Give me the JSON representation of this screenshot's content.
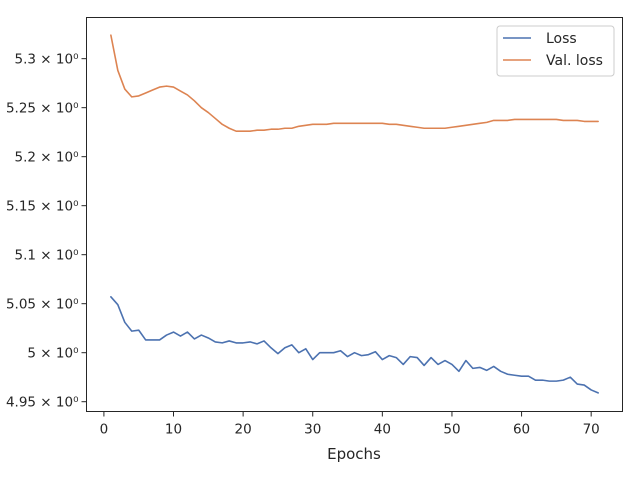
{
  "chart_data": {
    "type": "line",
    "title": "",
    "xlabel": "Epochs",
    "ylabel": "",
    "xlim": [
      -2.5,
      74.5
    ],
    "ylim": [
      4.94,
      5.342
    ],
    "grid": false,
    "legend_position": "top-right",
    "x_ticks": [
      0,
      10,
      20,
      30,
      40,
      50,
      60,
      70
    ],
    "x_tick_labels": [
      "0",
      "10",
      "20",
      "30",
      "40",
      "50",
      "60",
      "70"
    ],
    "y_ticks": [
      4.95,
      5.0,
      5.05,
      5.1,
      5.15,
      5.2,
      5.25,
      5.3
    ],
    "y_tick_labels": [
      "4.95 × 10⁰",
      "5 × 10⁰",
      "5.05 × 10⁰",
      "5.1 × 10⁰",
      "5.15 × 10⁰",
      "5.2 × 10⁰",
      "5.25 × 10⁰",
      "5.3 × 10⁰"
    ],
    "x": [
      1,
      2,
      3,
      4,
      5,
      6,
      7,
      8,
      9,
      10,
      11,
      12,
      13,
      14,
      15,
      16,
      17,
      18,
      19,
      20,
      21,
      22,
      23,
      24,
      25,
      26,
      27,
      28,
      29,
      30,
      31,
      32,
      33,
      34,
      35,
      36,
      37,
      38,
      39,
      40,
      41,
      42,
      43,
      44,
      45,
      46,
      47,
      48,
      49,
      50,
      51,
      52,
      53,
      54,
      55,
      56,
      57,
      58,
      59,
      60,
      61,
      62,
      63,
      64,
      65,
      66,
      67,
      68,
      69,
      70,
      71
    ],
    "series": [
      {
        "name": "Loss",
        "color": "#4c72b0",
        "values": [
          5.057,
          5.049,
          5.031,
          5.022,
          5.023,
          5.013,
          5.013,
          5.013,
          5.018,
          5.021,
          5.017,
          5.021,
          5.014,
          5.018,
          5.015,
          5.011,
          5.01,
          5.012,
          5.01,
          5.01,
          5.011,
          5.009,
          5.012,
          5.005,
          4.999,
          5.005,
          5.008,
          5.0,
          5.004,
          4.993,
          5.0,
          5.0,
          5.0,
          5.002,
          4.996,
          5.0,
          4.997,
          4.998,
          5.001,
          4.993,
          4.997,
          4.995,
          4.988,
          4.996,
          4.995,
          4.987,
          4.995,
          4.988,
          4.992,
          4.988,
          4.981,
          4.992,
          4.984,
          4.985,
          4.982,
          4.986,
          4.981,
          4.978,
          4.977,
          4.976,
          4.976,
          4.972,
          4.972,
          4.971,
          4.971,
          4.972,
          4.975,
          4.968,
          4.967,
          4.962,
          4.959
        ]
      },
      {
        "name": "Val. loss",
        "color": "#dd8452",
        "values": [
          5.324,
          5.288,
          5.269,
          5.261,
          5.262,
          5.265,
          5.268,
          5.271,
          5.272,
          5.271,
          5.267,
          5.263,
          5.257,
          5.25,
          5.245,
          5.239,
          5.233,
          5.229,
          5.226,
          5.226,
          5.226,
          5.227,
          5.227,
          5.228,
          5.228,
          5.229,
          5.229,
          5.231,
          5.232,
          5.233,
          5.233,
          5.233,
          5.234,
          5.234,
          5.234,
          5.234,
          5.234,
          5.234,
          5.234,
          5.234,
          5.233,
          5.233,
          5.232,
          5.231,
          5.23,
          5.229,
          5.229,
          5.229,
          5.229,
          5.23,
          5.231,
          5.232,
          5.233,
          5.234,
          5.235,
          5.237,
          5.237,
          5.237,
          5.238,
          5.238,
          5.238,
          5.238,
          5.238,
          5.238,
          5.238,
          5.237,
          5.237,
          5.237,
          5.236,
          5.236,
          5.236
        ]
      }
    ]
  }
}
